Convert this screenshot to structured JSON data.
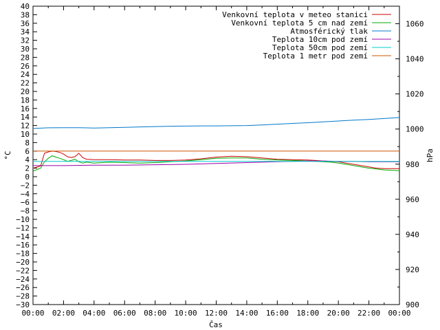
{
  "chart_data": {
    "type": "line",
    "title": "",
    "xlabel": "Čas",
    "ylabel": "°C",
    "y2label": "hPa",
    "ylim": [
      -30,
      40
    ],
    "y2lim": [
      900,
      1070
    ],
    "xlim": [
      0,
      24
    ],
    "x_ticks": [
      "00:00",
      "02:00",
      "04:00",
      "06:00",
      "08:00",
      "10:00",
      "12:00",
      "14:00",
      "16:00",
      "18:00",
      "20:00",
      "22:00",
      "00:00"
    ],
    "legend": "top-right",
    "grid": false,
    "series": [
      {
        "name": "Venkovní teplota v meteo stanici",
        "color": "#cc0000",
        "axis": "left",
        "x": [
          0,
          0.5,
          0.75,
          1,
          1.25,
          1.5,
          1.75,
          2,
          2.25,
          2.5,
          2.75,
          3,
          3.25,
          3.5,
          4,
          5,
          6,
          7,
          8,
          9,
          10,
          11,
          12,
          13,
          14,
          15,
          16,
          17,
          18,
          18.5,
          19,
          19.5,
          20,
          20.5,
          21,
          21.5,
          22,
          22.5,
          23,
          24
        ],
        "values": [
          2,
          2.5,
          5.5,
          5.8,
          6,
          5.9,
          5.7,
          5.3,
          4.7,
          4.5,
          4.7,
          5.5,
          4.5,
          4.1,
          4,
          4,
          3.9,
          3.9,
          3.8,
          3.8,
          3.9,
          4.2,
          4.6,
          4.8,
          4.7,
          4.4,
          4.1,
          4,
          3.9,
          3.8,
          3.7,
          3.6,
          3.5,
          3.2,
          2.9,
          2.6,
          2.3,
          2,
          1.9,
          1.9
        ]
      },
      {
        "name": "Venkovní teplota 5 cm nad zemí",
        "color": "#00aa00",
        "axis": "left",
        "x": [
          0,
          0.5,
          0.75,
          1,
          1.25,
          1.5,
          1.75,
          2,
          2.25,
          2.5,
          2.75,
          3,
          3.25,
          3.5,
          4,
          5,
          6,
          7,
          8,
          9,
          10,
          11,
          12,
          13,
          14,
          15,
          16,
          17,
          18,
          18.5,
          19,
          19.5,
          20,
          20.5,
          21,
          21.5,
          22,
          22.5,
          23,
          24
        ],
        "values": [
          1.3,
          2,
          3.5,
          4.3,
          4.9,
          4.6,
          4.3,
          4,
          3.6,
          3.8,
          4.1,
          3.5,
          3.2,
          3.4,
          3.2,
          3.4,
          3.3,
          3.2,
          3.3,
          3.5,
          3.7,
          4,
          4.3,
          4.4,
          4.4,
          4.1,
          3.9,
          3.8,
          3.7,
          3.6,
          3.5,
          3.4,
          3.2,
          2.9,
          2.6,
          2.3,
          2,
          1.8,
          1.6,
          1.4
        ]
      },
      {
        "name": "Atmosférický tlak",
        "color": "#0077cc",
        "axis": "right",
        "x": [
          0,
          1,
          2,
          3,
          4,
          5,
          6,
          7,
          8,
          9,
          10,
          11,
          12,
          13,
          14,
          15,
          16,
          17,
          18,
          19,
          20,
          21,
          22,
          23,
          24
        ],
        "values": [
          1000.3,
          1000.7,
          1000.8,
          1000.8,
          1000.6,
          1000.8,
          1001,
          1001.2,
          1001.4,
          1001.6,
          1001.7,
          1001.8,
          1001.8,
          1001.9,
          1002,
          1002.3,
          1002.8,
          1003.2,
          1003.6,
          1004.1,
          1004.6,
          1005.1,
          1005.5,
          1006,
          1006.6
        ]
      },
      {
        "name": "Teplota 10cm pod zemí",
        "color": "#9900aa",
        "axis": "left",
        "x": [
          0,
          2,
          4,
          6,
          8,
          10,
          12,
          14,
          16,
          17,
          18,
          19,
          20,
          21,
          22,
          23,
          24
        ],
        "values": [
          2.6,
          2.6,
          2.7,
          2.7,
          2.8,
          2.9,
          3.1,
          3.3,
          3.5,
          3.6,
          3.7,
          3.7,
          3.6,
          3.6,
          3.5,
          3.5,
          3.5
        ]
      },
      {
        "name": "Teplota 50cm pod zemí",
        "color": "#00cccc",
        "axis": "left",
        "x": [
          0,
          2,
          4,
          6,
          8,
          10,
          12,
          14,
          16,
          18,
          20,
          22,
          24
        ],
        "values": [
          3.6,
          3.6,
          3.6,
          3.6,
          3.6,
          3.6,
          3.6,
          3.6,
          3.6,
          3.6,
          3.6,
          3.6,
          3.6
        ]
      },
      {
        "name": "Teplota 1 metr pod zemí",
        "color": "#cc5500",
        "axis": "left",
        "x": [
          0,
          4,
          8,
          12,
          16,
          20,
          24
        ],
        "values": [
          6,
          6,
          6,
          6,
          6,
          6,
          6
        ]
      }
    ]
  }
}
